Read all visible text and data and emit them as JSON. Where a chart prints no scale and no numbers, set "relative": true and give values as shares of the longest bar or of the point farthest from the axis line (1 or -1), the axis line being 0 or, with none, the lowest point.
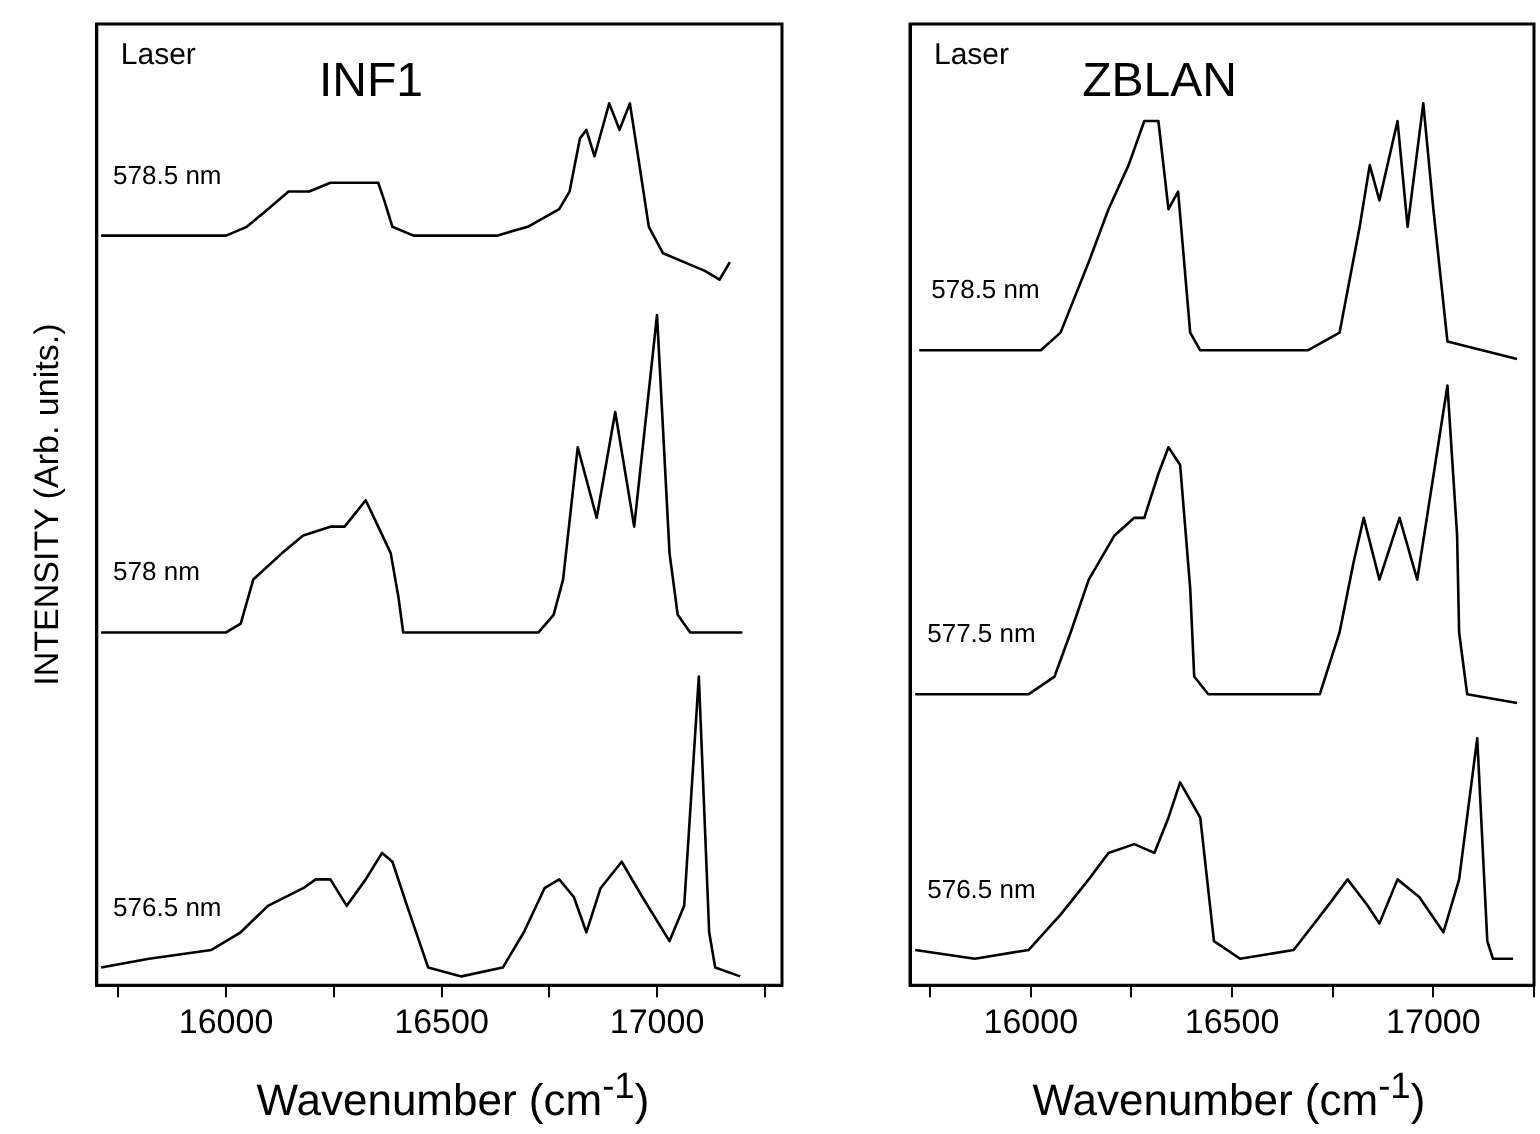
{
  "chart_data": [
    {
      "type": "line",
      "title": "INF1",
      "xlabel": "Wavenumber (cm$^{-1}$)",
      "ylabel": "INTENSITY (Arb. units.)",
      "annotations": [
        "Laser"
      ],
      "relative": true,
      "tick_labels": "x",
      "xlim": [
        15700,
        17290
      ],
      "xticks": [
        {
          "value": 15750,
          "label": null
        },
        16000,
        {
          "value": 16250,
          "label": null
        },
        16500,
        {
          "value": 16750,
          "label": null
        },
        17000,
        {
          "value": 17250,
          "label": null
        }
      ],
      "series": [
        {
          "name": "578.5 nm",
          "color": "#000000",
          "x": [
            15710,
            15807,
            15903,
            16000,
            16048,
            16097,
            16145,
            16193,
            16242,
            16290,
            16314,
            16353,
            16367,
            16386,
            16435,
            16531,
            16628,
            16700,
            16773,
            16797,
            16821,
            16836,
            16855,
            16889,
            16913,
            16937,
            16956,
            16981,
            17014,
            17063,
            17111,
            17145,
            17169
          ],
          "values": [
            0.85,
            0.85,
            0.85,
            0.85,
            0.86,
            0.88,
            0.9,
            0.9,
            0.91,
            0.91,
            0.91,
            0.91,
            0.89,
            0.86,
            0.85,
            0.85,
            0.85,
            0.86,
            0.88,
            0.9,
            0.96,
            0.97,
            0.94,
            1.0,
            0.97,
            1.0,
            0.94,
            0.86,
            0.83,
            0.82,
            0.81,
            0.8,
            0.82
          ]
        },
        {
          "name": "578 nm",
          "color": "#000000",
          "x": [
            15710,
            15903,
            16000,
            16034,
            16063,
            16130,
            16179,
            16242,
            16275,
            16324,
            16353,
            16382,
            16400,
            16411,
            16580,
            16725,
            16760,
            16782,
            16816,
            16860,
            16903,
            16947,
            17000,
            17029,
            17048,
            17077,
            17198
          ],
          "values": [
            0.4,
            0.4,
            0.4,
            0.41,
            0.46,
            0.49,
            0.51,
            0.52,
            0.52,
            0.55,
            0.52,
            0.49,
            0.44,
            0.4,
            0.4,
            0.4,
            0.42,
            0.46,
            0.61,
            0.53,
            0.65,
            0.52,
            0.76,
            0.49,
            0.42,
            0.4,
            0.4
          ]
        },
        {
          "name": "576.5 nm",
          "color": "#000000",
          "x": [
            15710,
            15821,
            15966,
            16034,
            16097,
            16179,
            16208,
            16242,
            16280,
            16324,
            16362,
            16386,
            16420,
            16469,
            16546,
            16642,
            16691,
            16739,
            16773,
            16807,
            16836,
            16869,
            16918,
            16966,
            17029,
            17063,
            17097,
            17121,
            17135,
            17193
          ],
          "values": [
            0.02,
            0.03,
            0.04,
            0.06,
            0.09,
            0.11,
            0.12,
            0.12,
            0.09,
            0.12,
            0.15,
            0.14,
            0.09,
            0.02,
            0.01,
            0.02,
            0.06,
            0.11,
            0.12,
            0.1,
            0.06,
            0.11,
            0.14,
            0.1,
            0.05,
            0.09,
            0.35,
            0.06,
            0.02,
            0.01
          ]
        }
      ]
    },
    {
      "type": "line",
      "title": "ZBLAN",
      "xlabel": "Wavenumber (cm$^{-1}$)",
      "annotations": [
        "Laser"
      ],
      "relative": true,
      "tick_labels": "x",
      "xlim": [
        15700,
        17250
      ],
      "xticks": [
        {
          "value": 15750,
          "label": null
        },
        16000,
        {
          "value": 16250,
          "label": null
        },
        16500,
        {
          "value": 16750,
          "label": null
        },
        17000,
        {
          "value": 17250,
          "label": null
        }
      ],
      "series": [
        {
          "name": "578.5 nm",
          "color": "#000000",
          "x": [
            15723,
            16025,
            16074,
            16144,
            16193,
            16243,
            16282,
            16317,
            16342,
            16366,
            16396,
            16421,
            16688,
            16767,
            16817,
            16842,
            16866,
            16911,
            16936,
            16975,
            17000,
            17035,
            17208
          ],
          "values": [
            0.72,
            0.72,
            0.74,
            0.82,
            0.88,
            0.93,
            0.98,
            0.98,
            0.88,
            0.9,
            0.74,
            0.72,
            0.72,
            0.74,
            0.86,
            0.93,
            0.89,
            0.98,
            0.86,
            1.0,
            0.88,
            0.73,
            0.71
          ]
        },
        {
          "name": "577.5 nm",
          "color": "#000000",
          "x": [
            15713,
            15995,
            16059,
            16099,
            16144,
            16208,
            16257,
            16282,
            16317,
            16342,
            16371,
            16396,
            16406,
            16441,
            16718,
            16767,
            16802,
            16827,
            16866,
            16916,
            16960,
            17035,
            17059,
            17064,
            17084,
            17208
          ],
          "values": [
            0.33,
            0.33,
            0.35,
            0.4,
            0.46,
            0.51,
            0.53,
            0.53,
            0.58,
            0.61,
            0.59,
            0.45,
            0.35,
            0.33,
            0.33,
            0.4,
            0.48,
            0.53,
            0.46,
            0.53,
            0.46,
            0.68,
            0.51,
            0.4,
            0.33,
            0.32
          ]
        },
        {
          "name": "576.5 nm",
          "color": "#000000",
          "x": [
            15713,
            15861,
            15995,
            16074,
            16144,
            16193,
            16257,
            16307,
            16342,
            16371,
            16421,
            16455,
            16520,
            16653,
            16738,
            16787,
            16837,
            16866,
            16911,
            16965,
            17025,
            17064,
            17109,
            17134,
            17148,
            17198
          ],
          "values": [
            0.04,
            0.03,
            0.04,
            0.08,
            0.12,
            0.15,
            0.16,
            0.15,
            0.19,
            0.23,
            0.19,
            0.05,
            0.03,
            0.04,
            0.09,
            0.12,
            0.09,
            0.07,
            0.12,
            0.1,
            0.06,
            0.12,
            0.28,
            0.05,
            0.03,
            0.03
          ]
        }
      ]
    }
  ]
}
